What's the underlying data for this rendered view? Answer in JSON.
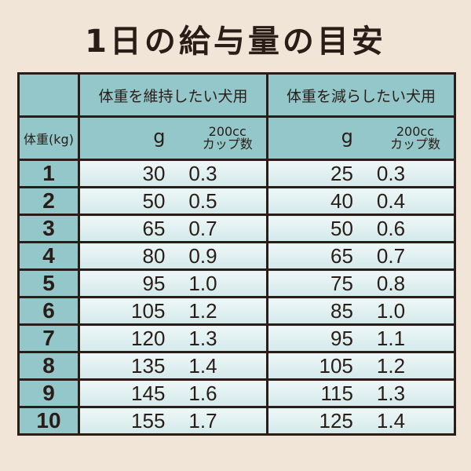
{
  "title": "1日の給与量の目安",
  "headers": {
    "weight": "体重(kg)",
    "group1": "体重を維持したい犬用",
    "group2": "体重を減らしたい犬用",
    "grams": "g",
    "cup_top": "200cc",
    "cup_bottom": "カップ数"
  },
  "rows": [
    {
      "kg": "1",
      "m_g": "30",
      "m_c": "0.3",
      "r_g": "25",
      "r_c": "0.3"
    },
    {
      "kg": "2",
      "m_g": "50",
      "m_c": "0.5",
      "r_g": "40",
      "r_c": "0.4"
    },
    {
      "kg": "3",
      "m_g": "65",
      "m_c": "0.7",
      "r_g": "50",
      "r_c": "0.6"
    },
    {
      "kg": "4",
      "m_g": "80",
      "m_c": "0.9",
      "r_g": "65",
      "r_c": "0.7"
    },
    {
      "kg": "5",
      "m_g": "95",
      "m_c": "1.0",
      "r_g": "75",
      "r_c": "0.8"
    },
    {
      "kg": "6",
      "m_g": "105",
      "m_c": "1.2",
      "r_g": "85",
      "r_c": "1.0"
    },
    {
      "kg": "7",
      "m_g": "120",
      "m_c": "1.3",
      "r_g": "95",
      "r_c": "1.1"
    },
    {
      "kg": "8",
      "m_g": "135",
      "m_c": "1.4",
      "r_g": "105",
      "r_c": "1.2"
    },
    {
      "kg": "9",
      "m_g": "145",
      "m_c": "1.6",
      "r_g": "115",
      "r_c": "1.3"
    },
    {
      "kg": "10",
      "m_g": "155",
      "m_c": "1.7",
      "r_g": "125",
      "r_c": "1.4"
    }
  ],
  "colors": {
    "background": "#f1e5d8",
    "header": "#93c7c9",
    "cell": "#dceeee",
    "border": "#2a1d18"
  }
}
